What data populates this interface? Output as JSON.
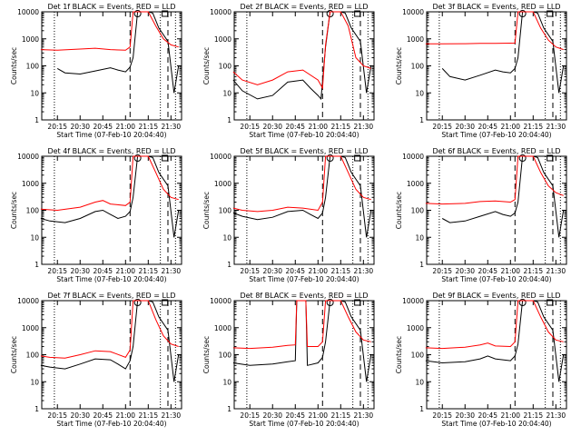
{
  "chart_data": [
    {
      "type": "line",
      "title": "Det 1f BLACK = Events, RED = LLD",
      "ylabel": "Counts/sec",
      "xlabel": "Start Time (07-Feb-10 20:04:40)",
      "yscale": "log",
      "ylim": [
        1,
        10000
      ],
      "y_ticks": [
        "1",
        "10",
        "100",
        "1000",
        "10000"
      ],
      "x_ticks": [
        "20:15",
        "20:30",
        "20:45",
        "21:00",
        "21:15",
        "21:30"
      ],
      "series": [
        {
          "name": "BLACK",
          "color": "#000000",
          "x": [
            "20:15",
            "20:20",
            "20:30",
            "20:40",
            "20:50",
            "20:55",
            "21:00",
            "21:03",
            "21:05",
            "21:08",
            "21:12",
            "21:15",
            "21:18",
            "21:22",
            "21:28",
            "21:32",
            "21:35"
          ],
          "values": [
            80,
            55,
            50,
            65,
            85,
            70,
            60,
            90,
            200,
            12000,
            12000,
            12000,
            9000,
            2500,
            800,
            10,
            100
          ]
        },
        {
          "name": "RED",
          "color": "#ff0000",
          "x": [
            "20:04",
            "20:15",
            "20:30",
            "20:40",
            "20:50",
            "21:00",
            "21:03",
            "21:05",
            "21:08",
            "21:12",
            "21:15",
            "21:20",
            "21:25",
            "21:30",
            "21:35"
          ],
          "values": [
            400,
            380,
            420,
            450,
            400,
            380,
            500,
            12000,
            12000,
            12000,
            12000,
            3000,
            1000,
            600,
            500
          ]
        }
      ]
    },
    {
      "type": "line",
      "title": "Det 2f BLACK = Events, RED = LLD",
      "ylabel": "Counts/sec",
      "xlabel": "Start Time (07-Feb-10 20:04:40)",
      "yscale": "log",
      "ylim": [
        1,
        10000
      ],
      "y_ticks": [
        "1",
        "10",
        "100",
        "1000",
        "10000"
      ],
      "x_ticks": [
        "20:15",
        "20:30",
        "20:45",
        "21:00",
        "21:15",
        "21:30"
      ],
      "series": [
        {
          "name": "BLACK",
          "color": "#000000",
          "x": [
            "20:04",
            "20:10",
            "20:20",
            "20:30",
            "20:40",
            "20:50",
            "20:55",
            "21:00",
            "21:02",
            "21:05",
            "21:08",
            "21:12",
            "21:15",
            "21:18",
            "21:22",
            "21:28",
            "21:32",
            "21:35"
          ],
          "values": [
            30,
            12,
            6,
            8,
            25,
            30,
            15,
            8,
            6,
            500,
            12000,
            12000,
            12000,
            9000,
            2500,
            800,
            10,
            100
          ]
        },
        {
          "name": "RED",
          "color": "#ff0000",
          "x": [
            "20:04",
            "20:10",
            "20:20",
            "20:30",
            "20:40",
            "20:50",
            "21:00",
            "21:03",
            "21:05",
            "21:08",
            "21:12",
            "21:15",
            "21:20",
            "21:25",
            "21:30",
            "21:35"
          ],
          "values": [
            60,
            30,
            20,
            30,
            60,
            70,
            30,
            15,
            600,
            12000,
            12000,
            12000,
            3000,
            200,
            100,
            80
          ]
        }
      ]
    },
    {
      "type": "line",
      "title": "Det 3f BLACK = Events, RED = LLD",
      "ylabel": "Counts/sec",
      "xlabel": "Start Time (07-Feb-10 20:04:40)",
      "yscale": "log",
      "ylim": [
        1,
        10000
      ],
      "y_ticks": [
        "1",
        "10",
        "100",
        "1000",
        "10000"
      ],
      "x_ticks": [
        "20:15",
        "20:30",
        "20:45",
        "21:00",
        "21:15",
        "21:30"
      ],
      "series": [
        {
          "name": "BLACK",
          "color": "#000000",
          "x": [
            "20:15",
            "20:20",
            "20:30",
            "20:40",
            "20:50",
            "20:55",
            "21:00",
            "21:03",
            "21:05",
            "21:08",
            "21:12",
            "21:15",
            "21:18",
            "21:22",
            "21:28",
            "21:32",
            "21:35"
          ],
          "values": [
            80,
            40,
            30,
            45,
            70,
            60,
            55,
            80,
            200,
            12000,
            12000,
            12000,
            9000,
            2500,
            800,
            10,
            100
          ]
        },
        {
          "name": "RED",
          "color": "#ff0000",
          "x": [
            "20:04",
            "20:15",
            "20:30",
            "20:40",
            "20:50",
            "21:00",
            "21:03",
            "21:05",
            "21:08",
            "21:12",
            "21:15",
            "21:20",
            "21:25",
            "21:30",
            "21:35"
          ],
          "values": [
            650,
            650,
            660,
            680,
            680,
            690,
            700,
            12000,
            12000,
            12000,
            12000,
            2500,
            900,
            500,
            400
          ]
        }
      ]
    },
    {
      "type": "line",
      "title": "Det 4f BLACK = Events, RED = LLD",
      "ylabel": "Counts/sec",
      "xlabel": "Start Time (07-Feb-10 20:04:40)",
      "yscale": "log",
      "ylim": [
        1,
        10000
      ],
      "y_ticks": [
        "1",
        "10",
        "100",
        "1000",
        "10000"
      ],
      "x_ticks": [
        "20:15",
        "20:30",
        "20:45",
        "21:00",
        "21:15",
        "21:30"
      ],
      "series": [
        {
          "name": "BLACK",
          "color": "#000000",
          "x": [
            "20:04",
            "20:10",
            "20:20",
            "20:30",
            "20:40",
            "20:45",
            "20:50",
            "20:55",
            "21:00",
            "21:03",
            "21:05",
            "21:08",
            "21:12",
            "21:15",
            "21:18",
            "21:22",
            "21:28",
            "21:32",
            "21:35"
          ],
          "values": [
            50,
            40,
            35,
            50,
            90,
            100,
            70,
            50,
            60,
            90,
            300,
            12000,
            12000,
            12000,
            9000,
            2500,
            800,
            10,
            100
          ]
        },
        {
          "name": "RED",
          "color": "#ff0000",
          "x": [
            "20:04",
            "20:15",
            "20:30",
            "20:40",
            "20:45",
            "20:50",
            "21:00",
            "21:03",
            "21:05",
            "21:08",
            "21:12",
            "21:15",
            "21:20",
            "21:25",
            "21:30",
            "21:35"
          ],
          "values": [
            110,
            100,
            130,
            200,
            230,
            170,
            150,
            200,
            12000,
            12000,
            12000,
            12000,
            2500,
            600,
            300,
            250
          ]
        }
      ]
    },
    {
      "type": "line",
      "title": "Det 5f BLACK = Events, RED = LLD",
      "ylabel": "Counts/sec",
      "xlabel": "Start Time (07-Feb-10 20:04:40)",
      "yscale": "log",
      "ylim": [
        1,
        10000
      ],
      "y_ticks": [
        "1",
        "10",
        "100",
        "1000",
        "10000"
      ],
      "x_ticks": [
        "20:15",
        "20:30",
        "20:45",
        "21:00",
        "21:15",
        "21:30"
      ],
      "series": [
        {
          "name": "BLACK",
          "color": "#000000",
          "x": [
            "20:04",
            "20:10",
            "20:20",
            "20:30",
            "20:40",
            "20:50",
            "20:55",
            "21:00",
            "21:03",
            "21:05",
            "21:08",
            "21:12",
            "21:15",
            "21:18",
            "21:22",
            "21:28",
            "21:32",
            "21:35"
          ],
          "values": [
            80,
            60,
            45,
            55,
            90,
            100,
            70,
            50,
            80,
            300,
            12000,
            12000,
            12000,
            9000,
            2500,
            800,
            10,
            100
          ]
        },
        {
          "name": "RED",
          "color": "#ff0000",
          "x": [
            "20:04",
            "20:10",
            "20:20",
            "20:30",
            "20:40",
            "20:50",
            "21:00",
            "21:03",
            "21:05",
            "21:08",
            "21:12",
            "21:15",
            "21:20",
            "21:25",
            "21:30",
            "21:35"
          ],
          "values": [
            120,
            100,
            90,
            100,
            130,
            120,
            100,
            200,
            12000,
            12000,
            12000,
            12000,
            2500,
            600,
            300,
            250
          ]
        }
      ]
    },
    {
      "type": "line",
      "title": "Det 6f BLACK = Events, RED = LLD",
      "ylabel": "Counts/sec",
      "xlabel": "Start Time (07-Feb-10 20:04:40)",
      "yscale": "log",
      "ylim": [
        1,
        10000
      ],
      "y_ticks": [
        "1",
        "10",
        "100",
        "1000",
        "10000"
      ],
      "x_ticks": [
        "20:15",
        "20:30",
        "20:45",
        "21:00",
        "21:15",
        "21:30"
      ],
      "series": [
        {
          "name": "BLACK",
          "color": "#000000",
          "x": [
            "20:15",
            "20:20",
            "20:30",
            "20:40",
            "20:50",
            "20:55",
            "21:00",
            "21:03",
            "21:05",
            "21:08",
            "21:12",
            "21:15",
            "21:18",
            "21:22",
            "21:28",
            "21:32",
            "21:35"
          ],
          "values": [
            50,
            35,
            40,
            60,
            90,
            70,
            60,
            80,
            200,
            12000,
            12000,
            12000,
            9000,
            2500,
            800,
            10,
            100
          ]
        },
        {
          "name": "RED",
          "color": "#ff0000",
          "x": [
            "20:04",
            "20:15",
            "20:30",
            "20:40",
            "20:50",
            "21:00",
            "21:03",
            "21:05",
            "21:08",
            "21:12",
            "21:15",
            "21:20",
            "21:25",
            "21:30",
            "21:35"
          ],
          "values": [
            180,
            170,
            180,
            210,
            220,
            200,
            250,
            12000,
            12000,
            12000,
            12000,
            2500,
            800,
            450,
            350
          ]
        }
      ]
    },
    {
      "type": "line",
      "title": "Det 7f BLACK = Events, RED = LLD",
      "ylabel": "Counts/sec",
      "xlabel": "Start Time (07-Feb-10 20:04:40)",
      "yscale": "log",
      "ylim": [
        1,
        10000
      ],
      "y_ticks": [
        "1",
        "10",
        "100",
        "1000",
        "10000"
      ],
      "x_ticks": [
        "20:15",
        "20:30",
        "20:45",
        "21:00",
        "21:15",
        "21:30"
      ],
      "series": [
        {
          "name": "BLACK",
          "color": "#000000",
          "x": [
            "20:04",
            "20:10",
            "20:20",
            "20:30",
            "20:40",
            "20:50",
            "20:55",
            "21:00",
            "21:03",
            "21:05",
            "21:08",
            "21:12",
            "21:15",
            "21:18",
            "21:22",
            "21:28",
            "21:32",
            "21:35"
          ],
          "values": [
            40,
            35,
            30,
            45,
            70,
            65,
            45,
            30,
            60,
            200,
            12000,
            12000,
            12000,
            9000,
            2500,
            800,
            10,
            100
          ]
        },
        {
          "name": "RED",
          "color": "#ff0000",
          "x": [
            "20:04",
            "20:10",
            "20:20",
            "20:30",
            "20:40",
            "20:50",
            "21:00",
            "21:03",
            "21:05",
            "21:08",
            "21:12",
            "21:15",
            "21:20",
            "21:25",
            "21:30",
            "21:35"
          ],
          "values": [
            90,
            80,
            75,
            100,
            140,
            130,
            80,
            150,
            12000,
            12000,
            12000,
            12000,
            2000,
            500,
            250,
            200
          ]
        }
      ]
    },
    {
      "type": "line",
      "title": "Det 8f BLACK = Events, RED = LLD",
      "ylabel": "Counts/sec",
      "xlabel": "Start Time (07-Feb-10 20:04:40)",
      "yscale": "log",
      "ylim": [
        1,
        10000
      ],
      "y_ticks": [
        "1",
        "10",
        "100",
        "1000",
        "10000"
      ],
      "x_ticks": [
        "20:15",
        "20:30",
        "20:45",
        "21:00",
        "21:15",
        "21:30"
      ],
      "series": [
        {
          "name": "BLACK",
          "color": "#000000",
          "x": [
            "20:04",
            "20:15",
            "20:30",
            "20:40",
            "20:45",
            "20:46",
            "20:52",
            "20:53",
            "21:00",
            "21:03",
            "21:05",
            "21:08",
            "21:12",
            "21:15",
            "21:18",
            "21:22",
            "21:28",
            "21:32",
            "21:35"
          ],
          "values": [
            50,
            40,
            45,
            55,
            60,
            12000,
            12000,
            40,
            50,
            80,
            300,
            12000,
            12000,
            12000,
            9000,
            2500,
            800,
            10,
            100
          ]
        },
        {
          "name": "RED",
          "color": "#ff0000",
          "x": [
            "20:04",
            "20:15",
            "20:30",
            "20:40",
            "20:45",
            "20:46",
            "20:52",
            "20:53",
            "21:00",
            "21:03",
            "21:05",
            "21:08",
            "21:12",
            "21:15",
            "21:20",
            "21:25",
            "21:30",
            "21:35"
          ],
          "values": [
            180,
            170,
            190,
            220,
            230,
            12000,
            12000,
            200,
            200,
            300,
            12000,
            12000,
            12000,
            12000,
            2500,
            700,
            350,
            300
          ]
        }
      ]
    },
    {
      "type": "line",
      "title": "Det 9f BLACK = Events, RED = LLD",
      "ylabel": "Counts/sec",
      "xlabel": "Start Time (07-Feb-10 20:04:40)",
      "yscale": "log",
      "ylim": [
        1,
        10000
      ],
      "y_ticks": [
        "1",
        "10",
        "100",
        "1000",
        "10000"
      ],
      "x_ticks": [
        "20:15",
        "20:30",
        "20:45",
        "21:00",
        "21:15",
        "21:30"
      ],
      "series": [
        {
          "name": "BLACK",
          "color": "#000000",
          "x": [
            "20:04",
            "20:15",
            "20:30",
            "20:40",
            "20:45",
            "20:50",
            "21:00",
            "21:03",
            "21:05",
            "21:08",
            "21:12",
            "21:15",
            "21:18",
            "21:22",
            "21:28",
            "21:32",
            "21:35"
          ],
          "values": [
            60,
            50,
            55,
            70,
            90,
            70,
            60,
            90,
            250,
            12000,
            12000,
            12000,
            9000,
            2500,
            800,
            10,
            100
          ]
        },
        {
          "name": "RED",
          "color": "#ff0000",
          "x": [
            "20:04",
            "20:15",
            "20:30",
            "20:40",
            "20:45",
            "20:50",
            "21:00",
            "21:03",
            "21:05",
            "21:08",
            "21:12",
            "21:15",
            "21:20",
            "21:25",
            "21:30",
            "21:35"
          ],
          "values": [
            180,
            170,
            190,
            230,
            270,
            210,
            200,
            300,
            12000,
            12000,
            12000,
            12000,
            2500,
            700,
            350,
            300
          ]
        }
      ]
    }
  ]
}
